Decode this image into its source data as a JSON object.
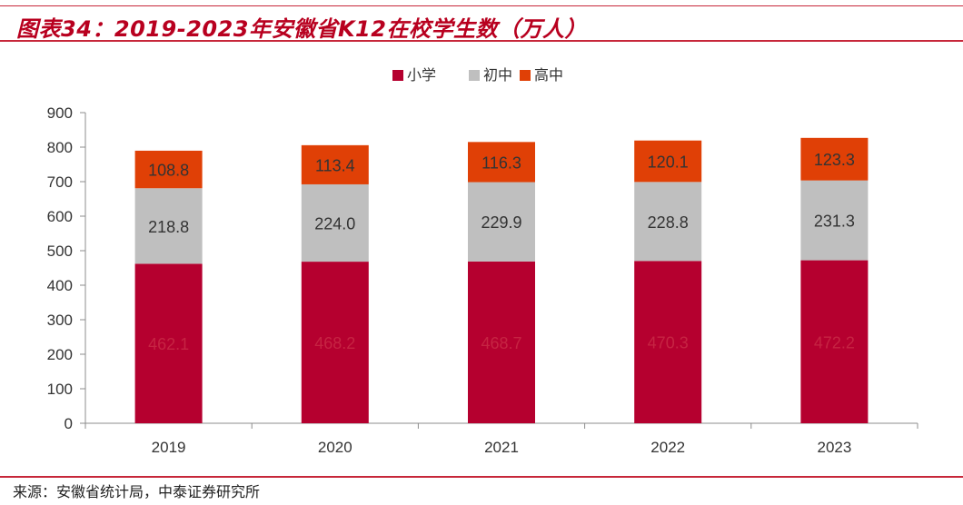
{
  "header": {
    "title": "图表34：2019-2023年安徽省K12在校学生数（万人）"
  },
  "footer": {
    "source": "来源：安徽省统计局，中泰证券研究所"
  },
  "colors": {
    "primary": "#b5002f",
    "middle": "#bfbfbf",
    "high": "#e04006",
    "accent": "#c7273a"
  },
  "chart_data": {
    "type": "bar",
    "stacked": true,
    "title": "2019-2023年安徽省K12在校学生数（万人）",
    "categories": [
      "2019",
      "2020",
      "2021",
      "2022",
      "2023"
    ],
    "series": [
      {
        "name": "小学",
        "color": "#b5002f",
        "label_color": "#c62443",
        "values": [
          462.1,
          468.2,
          468.7,
          470.3,
          472.2
        ]
      },
      {
        "name": "初中",
        "color": "#bfbfbf",
        "label_color": "#333333",
        "values": [
          218.8,
          224.0,
          229.9,
          228.8,
          231.3
        ]
      },
      {
        "name": "高中",
        "color": "#e04006",
        "label_color": "#333333",
        "values": [
          108.8,
          113.4,
          116.3,
          120.1,
          123.3
        ]
      }
    ],
    "ylim": [
      0,
      900
    ],
    "yticks": [
      0,
      100,
      200,
      300,
      400,
      500,
      600,
      700,
      800,
      900
    ],
    "legend_position": "top-center",
    "grid": false,
    "xlabel": "",
    "ylabel": ""
  }
}
